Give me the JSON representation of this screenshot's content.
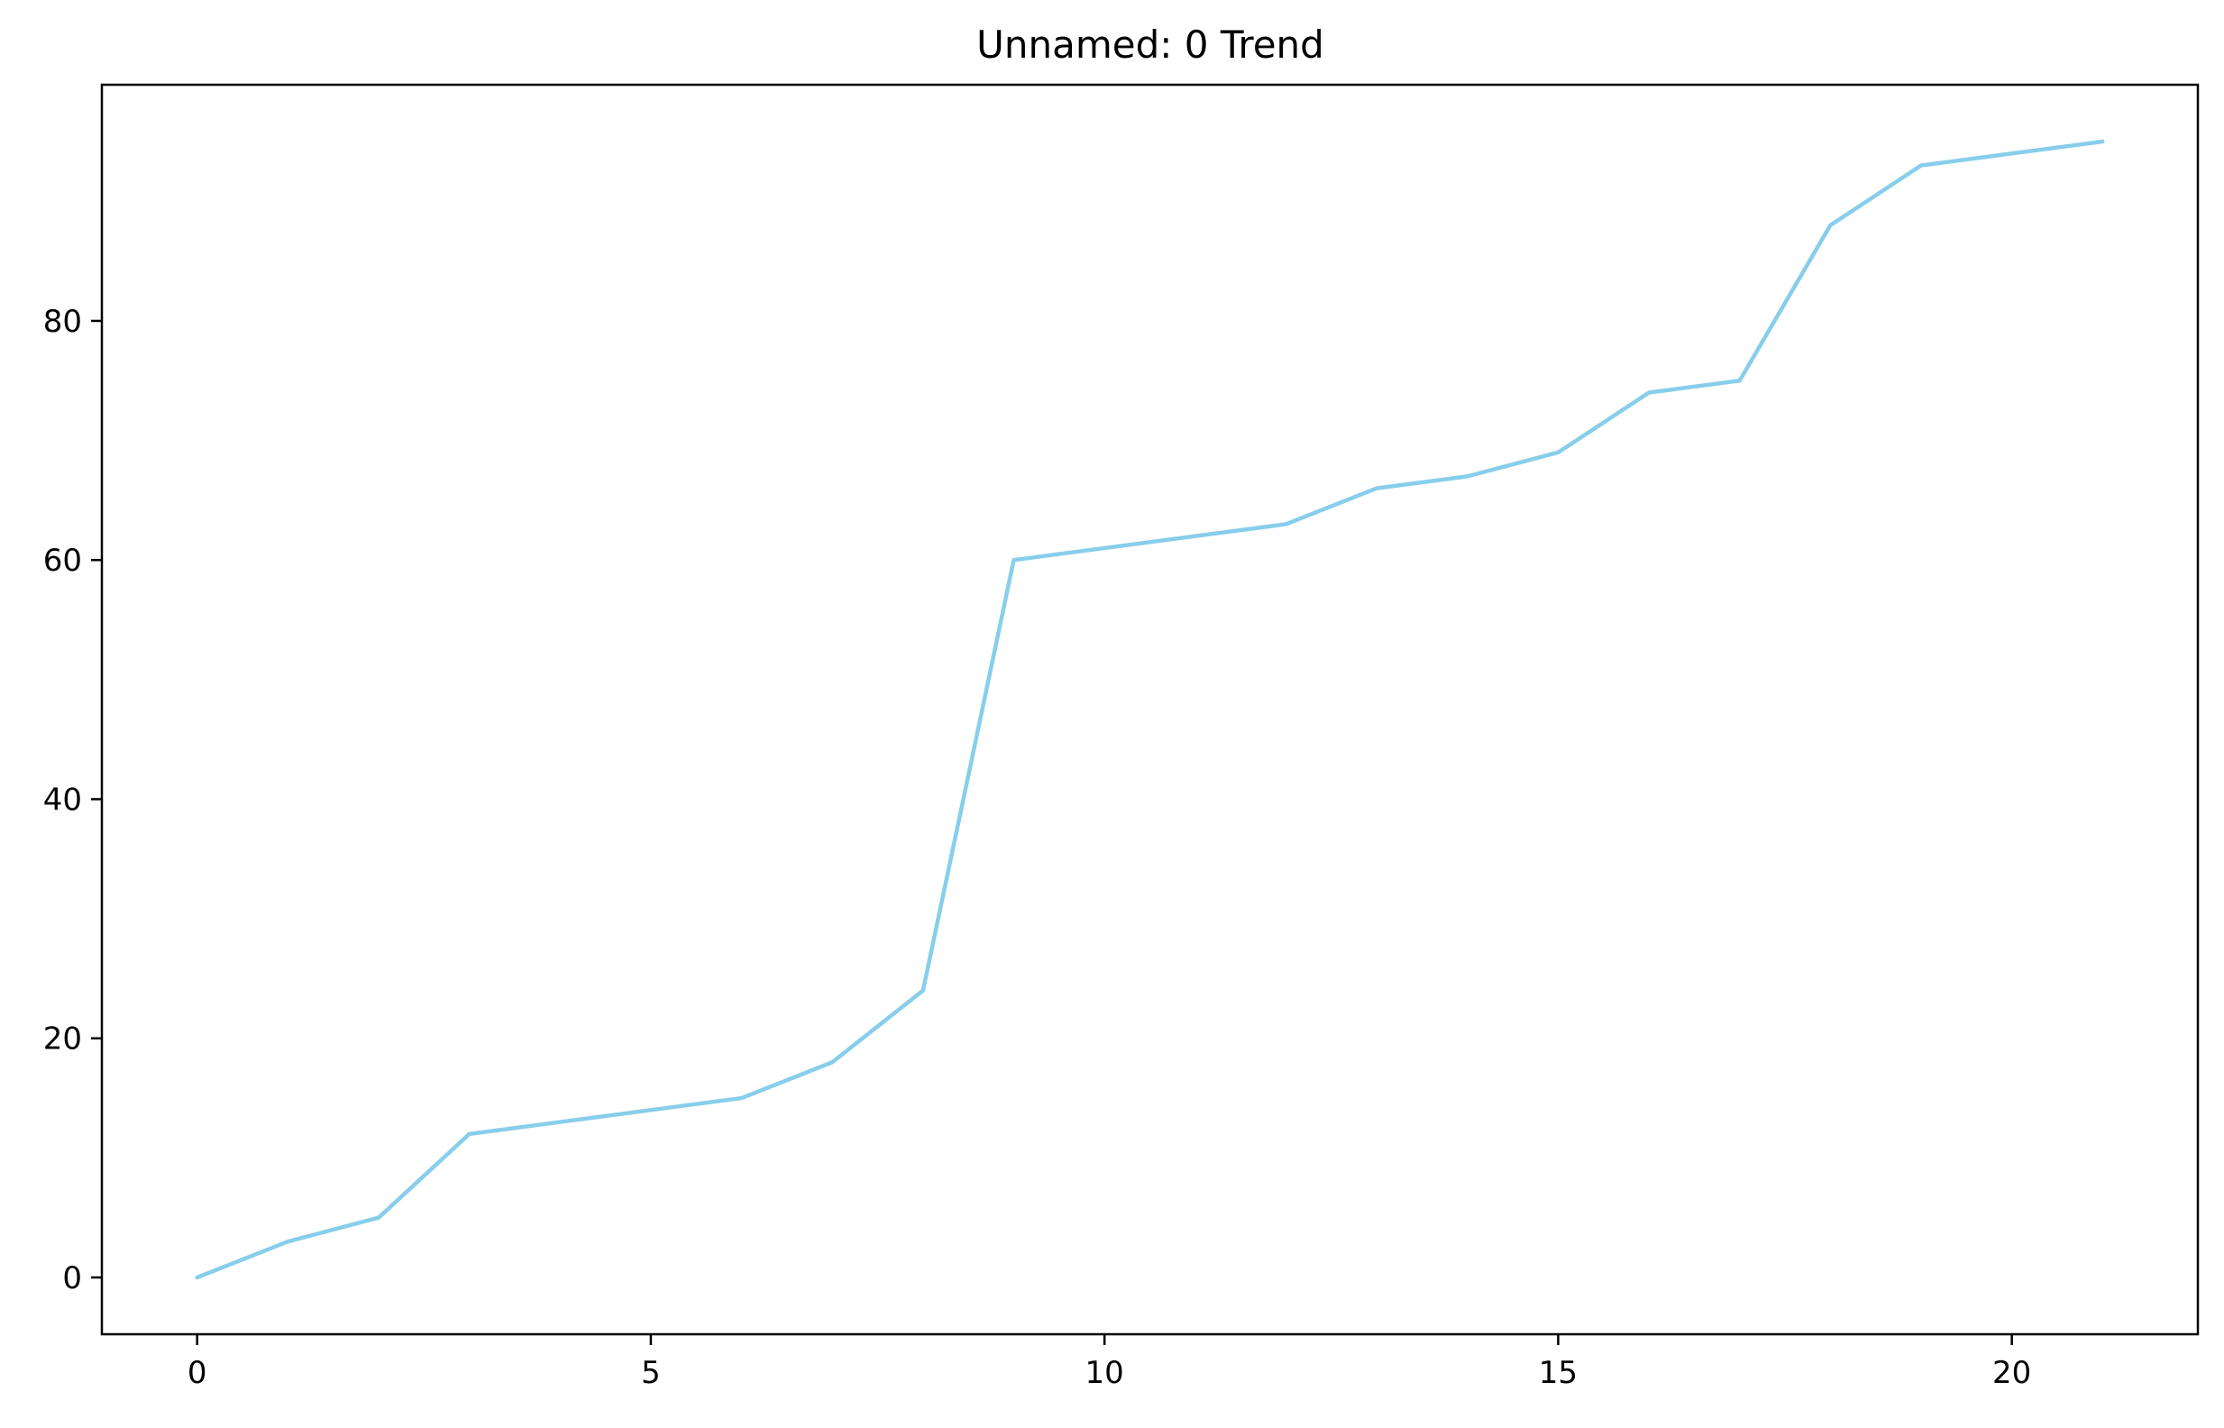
{
  "chart_data": {
    "type": "line",
    "title": "Unnamed: 0 Trend",
    "xlabel": "",
    "ylabel": "",
    "x": [
      0,
      1,
      2,
      3,
      4,
      5,
      6,
      7,
      8,
      9,
      10,
      11,
      12,
      13,
      14,
      15,
      16,
      17,
      18,
      19,
      20,
      21
    ],
    "series": [
      {
        "values": [
          0,
          3,
          5,
          12,
          13,
          14,
          15,
          18,
          24,
          60,
          61,
          62,
          63,
          66,
          67,
          69,
          74,
          75,
          88,
          93,
          94,
          95
        ],
        "color": "#87ceeb"
      }
    ],
    "xlim": [
      -1.05,
      22.05
    ],
    "ylim": [
      -4.75,
      99.75
    ],
    "xticks": [
      0,
      5,
      10,
      15,
      20
    ],
    "yticks": [
      0,
      20,
      40,
      60,
      80
    ],
    "grid": false,
    "legend": "none"
  }
}
